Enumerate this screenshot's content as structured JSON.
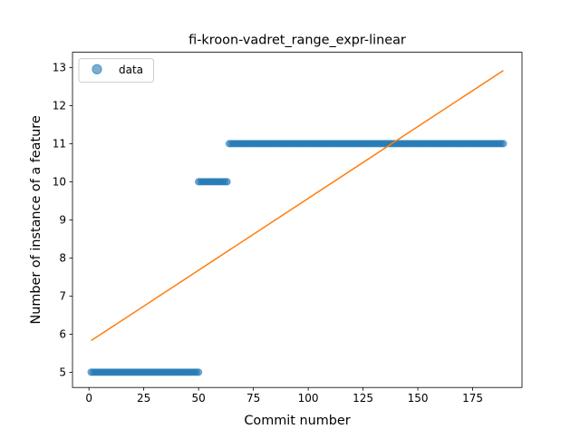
{
  "chart_data": {
    "type": "scatter",
    "title": "fi-kroon-vadret_range_expr-linear",
    "xlabel": "Commit number",
    "ylabel": "Number of instance of a feature",
    "xlim": [
      -7.5,
      197.5
    ],
    "ylim": [
      4.6,
      13.4
    ],
    "xticks": [
      0,
      25,
      50,
      75,
      100,
      125,
      150,
      175
    ],
    "yticks": [
      5,
      6,
      7,
      8,
      9,
      10,
      11,
      12,
      13
    ],
    "legend": {
      "position": "upper-left",
      "entries": [
        "data"
      ]
    },
    "grid": false,
    "series": [
      {
        "name": "data",
        "kind": "points",
        "color": "#1f77b4",
        "segments": [
          {
            "x_start": 1,
            "x_end": 50,
            "y": 5
          },
          {
            "x_start": 50,
            "x_end": 63,
            "y": 10
          },
          {
            "x_start": 64,
            "x_end": 189,
            "y": 11
          }
        ]
      },
      {
        "kind": "line",
        "color": "#ff7f0e",
        "x": [
          1,
          189
        ],
        "y": [
          5.83,
          12.92
        ]
      }
    ]
  }
}
